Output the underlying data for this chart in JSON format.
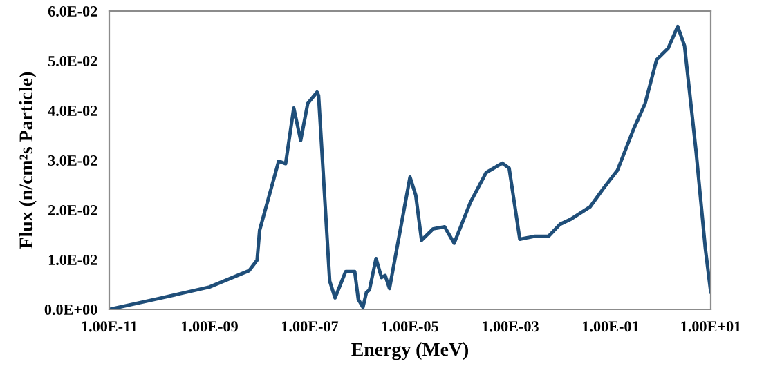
{
  "chart_data": {
    "type": "line",
    "xlabel": "Energy (MeV)",
    "ylabel": "Flux (n/cm²s Particle)",
    "log": "x",
    "series": [
      {
        "color": "#1f4e79",
        "x": [
          1e-11,
          1e-10,
          1e-09,
          6.2e-09,
          8.9e-09,
          1e-08,
          2.4e-08,
          3.3e-08,
          4.8e-08,
          6.6e-08,
          9.1e-08,
          1.4e-07,
          1.5e-07,
          2.5e-07,
          3.2e-07,
          5.2e-07,
          7.9e-07,
          9.3e-07,
          1.15e-06,
          1.35e-06,
          1.55e-06,
          2.1e-06,
          2.7e-06,
          3.2e-06,
          3.9e-06,
          1e-05,
          1.3e-05,
          1.7e-05,
          2.9e-05,
          4.9e-05,
          7.6e-05,
          0.00016,
          0.00033,
          0.00069,
          0.00095,
          0.00155,
          0.0031,
          0.0058,
          0.0098,
          0.0166,
          0.039,
          0.072,
          0.138,
          0.29,
          0.49,
          0.83,
          1.41,
          2.19,
          3.0,
          5.1,
          7.8,
          10
        ],
        "values": [
          0,
          0.0022,
          0.0045,
          0.0078,
          0.0099,
          0.0159,
          0.0298,
          0.0293,
          0.0405,
          0.034,
          0.0414,
          0.0437,
          0.043,
          0.0057,
          0.0023,
          0.0076,
          0.0076,
          0.002,
          0.0004,
          0.0034,
          0.0039,
          0.0102,
          0.0064,
          0.0068,
          0.0042,
          0.0266,
          0.023,
          0.0139,
          0.0162,
          0.0166,
          0.0133,
          0.0215,
          0.0275,
          0.0294,
          0.0284,
          0.0141,
          0.0147,
          0.0147,
          0.0171,
          0.0182,
          0.0206,
          0.0243,
          0.028,
          0.0363,
          0.0414,
          0.0502,
          0.0525,
          0.0569,
          0.053,
          0.0317,
          0.0122,
          0.0034
        ]
      }
    ],
    "xlim": [
      1e-11,
      10
    ],
    "xticks": [
      {
        "value": 1e-11,
        "label": "1.00E-11"
      },
      {
        "value": 1e-09,
        "label": "1.00E-09"
      },
      {
        "value": 1e-07,
        "label": "1.00E-07"
      },
      {
        "value": 1e-05,
        "label": "1.00E-05"
      },
      {
        "value": 0.001,
        "label": "1.00E-03"
      },
      {
        "value": 0.1,
        "label": "1.00E-01"
      },
      {
        "value": 10,
        "label": "1.00E+01"
      }
    ],
    "ylim": [
      0,
      0.06
    ],
    "yticks": [
      {
        "value": 0,
        "label": "0.0E+00"
      },
      {
        "value": 0.01,
        "label": "1.0E-02"
      },
      {
        "value": 0.02,
        "label": "2.0E-02"
      },
      {
        "value": 0.03,
        "label": "3.0E-02"
      },
      {
        "value": 0.04,
        "label": "4.0E-02"
      },
      {
        "value": 0.05,
        "label": "5.0E-02"
      },
      {
        "value": 0.06,
        "label": "6.0E-02"
      }
    ],
    "grid": false,
    "marker": "none",
    "line_style": "solid"
  }
}
